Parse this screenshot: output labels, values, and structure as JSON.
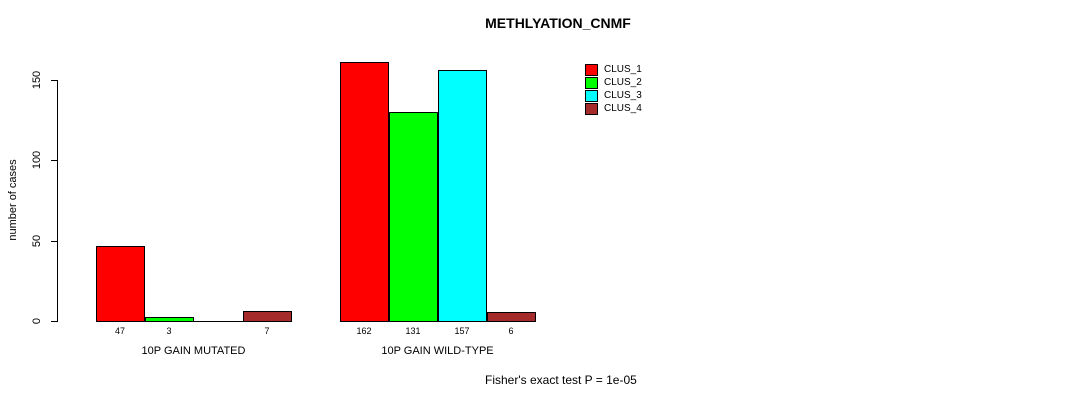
{
  "title": "METHLYATION_CNMF",
  "ylabel": "number of cases",
  "footer": "Fisher's exact test P = 1e-05",
  "chart_data": {
    "type": "bar",
    "title": "METHLYATION_CNMF",
    "xlabel": "",
    "ylabel": "number of cases",
    "categories": [
      "10P GAIN MUTATED",
      "10P GAIN WILD-TYPE"
    ],
    "series": [
      {
        "name": "CLUS_1",
        "color": "#FF0000",
        "values": [
          47,
          162
        ]
      },
      {
        "name": "CLUS_2",
        "color": "#00FF00",
        "values": [
          3,
          131
        ]
      },
      {
        "name": "CLUS_3",
        "color": "#00FFFF",
        "values": [
          0,
          157
        ]
      },
      {
        "name": "CLUS_4",
        "color": "#A52A2A",
        "values": [
          7,
          6
        ]
      }
    ],
    "yticks": [
      0,
      50,
      100,
      150
    ],
    "ylim": [
      0,
      168
    ],
    "grid": false,
    "legend_position": "top-right",
    "bar_value_labels_shown": true,
    "zero_value_labels_hidden": true,
    "annotation": "Fisher's exact test P = 1e-05"
  }
}
